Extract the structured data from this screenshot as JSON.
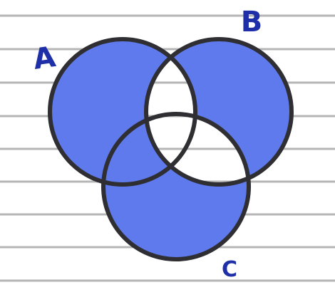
{
  "diagram": {
    "sets": [
      {
        "label": "A"
      },
      {
        "label": "B"
      },
      {
        "label": "C"
      }
    ]
  }
}
